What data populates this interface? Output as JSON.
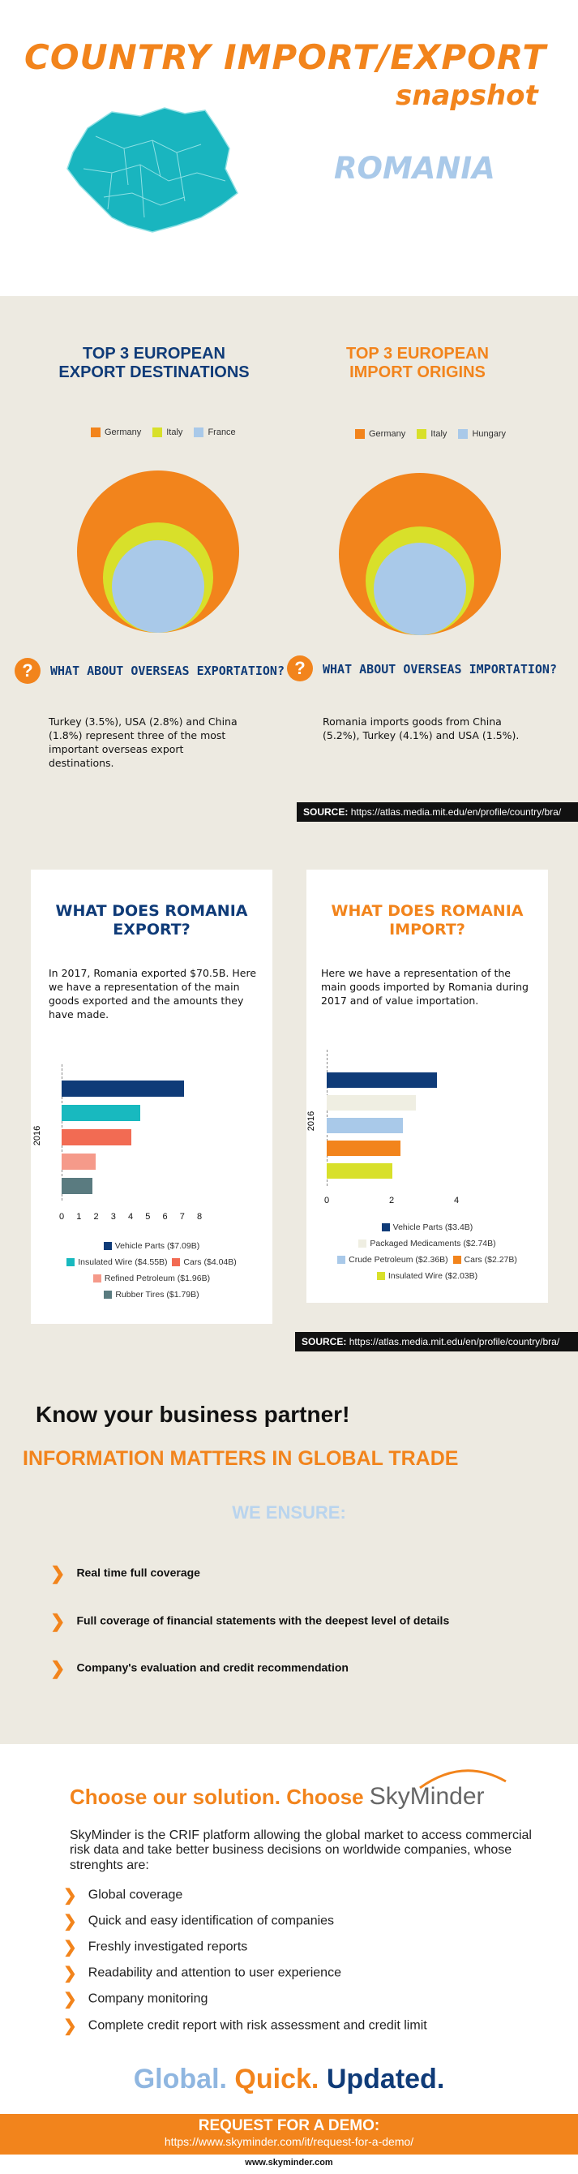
{
  "header": {
    "title": "COUNTRY IMPORT/EXPORT",
    "subtitle": "snapshot",
    "country": "ROMANIA"
  },
  "colors": {
    "orange": "#f2841c",
    "navy": "#0f3b78",
    "light_blue": "#a9c9e9",
    "yellow_green": "#d8e02a",
    "teal": "#18b9bf",
    "coral": "#f26b53",
    "salmon": "#f59a8a",
    "slate": "#5a7b80",
    "beige": "#edeae1"
  },
  "destinations": {
    "export_title_1": "TOP 3 EUROPEAN",
    "export_title_2": "EXPORT DESTINATIONS",
    "import_title_1": "TOP 3 EUROPEAN",
    "import_title_2": "IMPORT ORIGINS",
    "export_legend": [
      "Germany",
      "Italy",
      "France"
    ],
    "import_legend": [
      "Germany",
      "Italy",
      "Hungary"
    ],
    "overseas_export_q": "WHAT ABOUT OVERSEAS EXPORTATION?",
    "overseas_import_q": "WHAT ABOUT OVERSEAS IMPORTATION?",
    "overseas_export_text": "Turkey (3.5%), USA (2.8%) and China (1.8%)  represent three of the most important overseas export destinations.",
    "overseas_import_text": "Romania imports  goods from China (5.2%), Turkey (4.1%) and USA (1.5%).",
    "source_label": "SOURCE:",
    "source_url": "https://atlas.media.mit.edu/en/profile/country/bra/"
  },
  "goods": {
    "export_title_1": "WHAT DOES ROMANIA",
    "export_title_2": "EXPORT?",
    "import_title_1": "WHAT DOES ROMANIA",
    "import_title_2": "IMPORT?",
    "export_text": "In 2017, Romania exported $70.5B. Here we have a representation of the main goods exported and the amounts they have made.",
    "import_text": "Here we have a representation of the main goods imported by Romania  during 2017  and of value importation.",
    "source_label": "SOURCE:",
    "source_url": "https://atlas.media.mit.edu/en/profile/country/bra/"
  },
  "chart_data": [
    {
      "type": "bar",
      "orientation": "horizontal",
      "ylabel": "2016",
      "xticks": [
        "0",
        "1",
        "2",
        "3",
        "4",
        "5",
        "6",
        "7",
        "8"
      ],
      "xlim": [
        0,
        8
      ],
      "categories": [
        "Vehicle Parts ($7.09B)",
        "Insulated Wire ($4.55B)",
        "Cars ($4.04B)",
        "Refined Petroleum ($1.96B)",
        "Rubber Tires ($1.79B)"
      ],
      "values": [
        7.09,
        4.55,
        4.04,
        1.96,
        1.79
      ],
      "colors": [
        "#0f3b78",
        "#18b9bf",
        "#f26b53",
        "#f59a8a",
        "#5a7b80"
      ]
    },
    {
      "type": "bar",
      "orientation": "horizontal",
      "ylabel": "2016",
      "xticks": [
        "0",
        "2",
        "4"
      ],
      "xlim": [
        0,
        5
      ],
      "categories": [
        "Vehicle Parts ($3.4B)",
        "Packaged Medicaments ($2.74B)",
        "Crude Petroleum ($2.36B)",
        "Cars ($2.27B)",
        "Insulated Wire ($2.03B)"
      ],
      "values": [
        3.4,
        2.74,
        2.36,
        2.27,
        2.03
      ],
      "colors": [
        "#0f3b78",
        "#efeee2",
        "#a9c9e9",
        "#f2841c",
        "#d8e02a"
      ]
    }
  ],
  "ensure": {
    "headline": "Know your business partner!",
    "subheadline": "INFORMATION MATTERS IN GLOBAL TRADE",
    "we_ensure": "WE ENSURE:",
    "items": [
      "Real time full coverage",
      "Full coverage of financial statements with the deepest level of details",
      "Company's evaluation and credit recommendation"
    ]
  },
  "solution": {
    "headline": "Choose our solution. Choose",
    "brand": "SkyMinder",
    "description": "SkyMinder is the CRIF platform allowing the global market to access commercial risk data and take better business decisions on worldwide companies, whose strenghts are:",
    "features": [
      "Global coverage",
      "Quick and easy identification of companies",
      "Freshly investigated reports",
      "Readability and attention to user experience",
      "Company monitoring",
      "Complete credit report with risk assessment and credit limit"
    ],
    "slogan_1": "Global.",
    "slogan_2": "Quick.",
    "slogan_3": "Updated."
  },
  "footer": {
    "demo_title": "REQUEST FOR A DEMO:",
    "demo_url": "https://www.skyminder.com/it/request-for-a-demo/",
    "website": "www.skyminder.com"
  }
}
